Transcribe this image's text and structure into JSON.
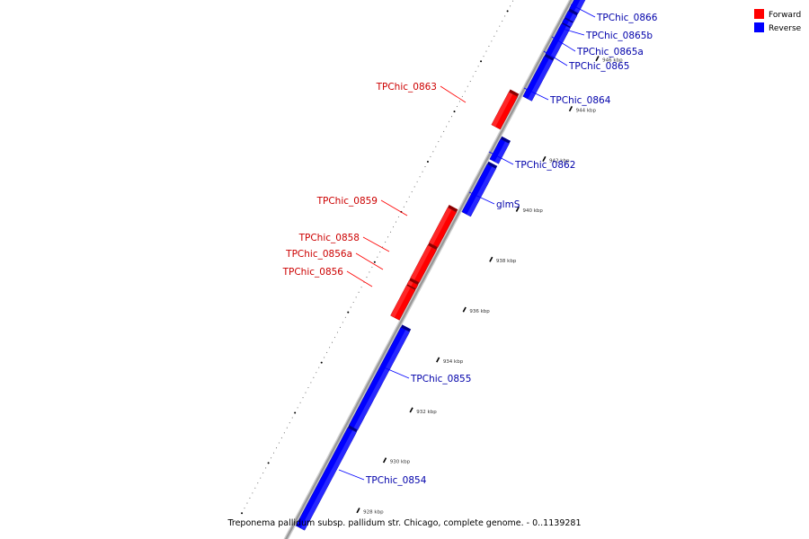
{
  "caption": "Treponema pallidum subsp. pallidum str. Chicago, complete genome. - 0..1139281",
  "colors": {
    "forward": "#ff0000",
    "reverse": "#0000ff",
    "forward_label": "#cc0000",
    "reverse_label": "#0000aa",
    "backbone": "#999999"
  },
  "legend": {
    "items": [
      {
        "label": "Forward",
        "strand": "forward"
      },
      {
        "label": "Reverse",
        "strand": "reverse"
      }
    ]
  },
  "genome_axis": {
    "unit": "kbp",
    "visible_range_kbp": [
      926.5,
      947.9
    ],
    "major_ticks": [
      {
        "kbp": 928,
        "label": "928 kbp"
      },
      {
        "kbp": 930,
        "label": "930 kbp"
      },
      {
        "kbp": 932,
        "label": "932 kbp"
      },
      {
        "kbp": 934,
        "label": "934 kbp"
      },
      {
        "kbp": 936,
        "label": "936 kbp"
      },
      {
        "kbp": 938,
        "label": "938 kbp"
      },
      {
        "kbp": 940,
        "label": "940 kbp"
      },
      {
        "kbp": 942,
        "label": "942 kbp"
      },
      {
        "kbp": 944,
        "label": "944 kbp"
      },
      {
        "kbp": 946,
        "label": "946 kbp"
      }
    ]
  },
  "genes": [
    {
      "name": "TPChic_0854",
      "strand": "reverse",
      "start_kbp": 926.5,
      "end_kbp": 930.4
    },
    {
      "name": "TPChic_0855",
      "strand": "reverse",
      "start_kbp": 930.5,
      "end_kbp": 934.4
    },
    {
      "name": "TPChic_0856",
      "strand": "forward",
      "start_kbp": 934.6,
      "end_kbp": 935.8
    },
    {
      "name": "TPChic_0856a",
      "strand": "forward",
      "start_kbp": 935.85,
      "end_kbp": 936.0
    },
    {
      "name": "TPChic_0858",
      "strand": "forward",
      "start_kbp": 936.1,
      "end_kbp": 937.4
    },
    {
      "name": "TPChic_0859",
      "strand": "forward",
      "start_kbp": 937.5,
      "end_kbp": 938.9
    },
    {
      "name": "glmS",
      "strand": "reverse",
      "start_kbp": 939.0,
      "end_kbp": 940.9
    },
    {
      "name": "TPChic_0862",
      "strand": "reverse",
      "start_kbp": 941.1,
      "end_kbp": 941.9
    },
    {
      "name": "TPChic_0863",
      "strand": "forward",
      "start_kbp": 942.2,
      "end_kbp": 943.5
    },
    {
      "name": "TPChic_0864",
      "strand": "reverse",
      "start_kbp": 943.6,
      "end_kbp": 945.2
    },
    {
      "name": "TPChic_0865",
      "strand": "reverse",
      "start_kbp": 945.3,
      "end_kbp": 946.5
    },
    {
      "name": "TPChic_0865a",
      "strand": "reverse",
      "start_kbp": 946.55,
      "end_kbp": 946.7
    },
    {
      "name": "TPChic_0865b",
      "strand": "reverse",
      "start_kbp": 946.75,
      "end_kbp": 947.0
    },
    {
      "name": "TPChic_0866",
      "strand": "reverse",
      "start_kbp": 947.1,
      "end_kbp": 947.9
    }
  ]
}
